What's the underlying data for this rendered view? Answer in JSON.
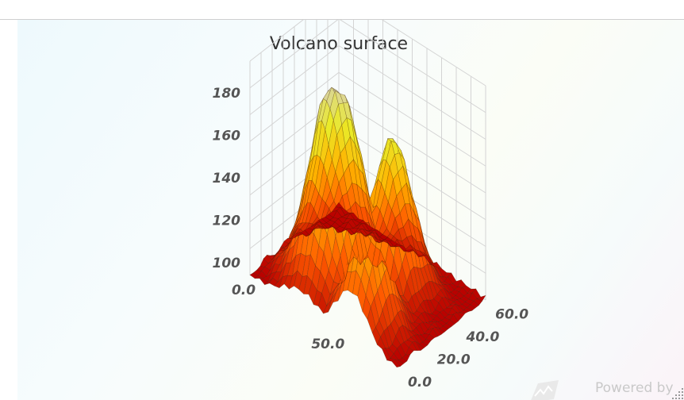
{
  "chart_data": {
    "type": "surface",
    "title": "Volcano surface",
    "x_ticks": [
      "0.0",
      "50.0"
    ],
    "y_ticks": [
      "100",
      "120",
      "140",
      "160",
      "180"
    ],
    "z_ticks": [
      "0.0",
      "20.0",
      "40.0",
      "60.0"
    ],
    "x_range": [
      0,
      87
    ],
    "y_range": [
      94,
      195
    ],
    "z_range": [
      0,
      61
    ],
    "grid": true,
    "color_scale": [
      "#b80000",
      "#ff5a00",
      "#ffb300",
      "#eaea28",
      "#d9d3a8"
    ],
    "peaks": [
      {
        "x": 30,
        "z": 24,
        "height": 195
      },
      {
        "x": 52,
        "z": 38,
        "height": 165
      },
      {
        "x": 60,
        "z": 12,
        "height": 148
      }
    ],
    "base_height": 94
  },
  "credits": "Powered by"
}
